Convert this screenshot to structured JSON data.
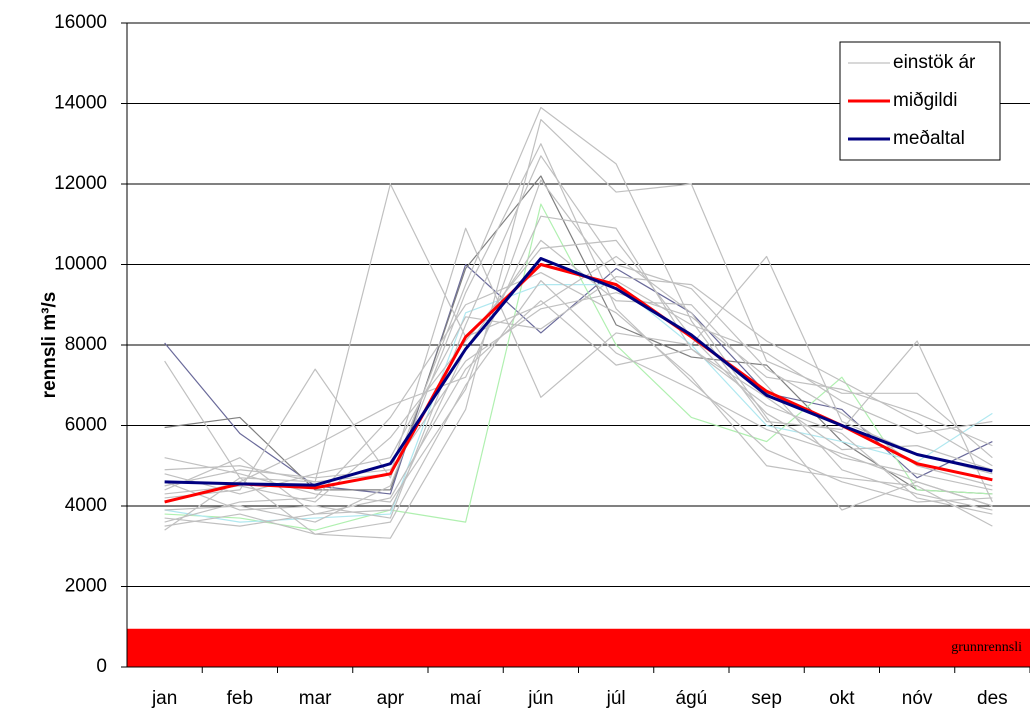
{
  "chart_data": {
    "type": "line",
    "y_label": "rennsli m³/s",
    "categories": [
      "jan",
      "feb",
      "mar",
      "apr",
      "maí",
      "jún",
      "júl",
      "ágú",
      "sep",
      "okt",
      "nóv",
      "des"
    ],
    "ylim": [
      0,
      16000
    ],
    "yticks": [
      0,
      2000,
      4000,
      6000,
      8000,
      10000,
      12000,
      14000,
      16000
    ],
    "grid": true,
    "baseflow": {
      "label": "grunnrennsli",
      "value": 950,
      "color": "#ff0000"
    },
    "years": {
      "name": "einstök ár",
      "color": "#c0c0c0",
      "lines": [
        {
          "color": "#6a6a9a",
          "values": [
            8050,
            5800,
            4500,
            4300,
            10000,
            8300,
            9900,
            8800,
            6800,
            6400,
            4700,
            5600
          ]
        },
        {
          "color": "#808080",
          "values": [
            5950,
            6200,
            4400,
            4400,
            9900,
            12200,
            8500,
            7700,
            7500,
            5600,
            4400,
            4300
          ]
        },
        {
          "color": "#b0f0b0",
          "values": [
            3800,
            3700,
            3400,
            3900,
            3600,
            11500,
            8000,
            6200,
            5600,
            7200,
            4400,
            4300
          ]
        },
        {
          "color": "#b0e8f0",
          "values": [
            3900,
            3600,
            3700,
            3800,
            8800,
            9500,
            9500,
            8000,
            6000,
            5600,
            5100,
            6300
          ]
        },
        {
          "color": "#c0c0c0",
          "values": [
            7600,
            4700,
            4600,
            12000,
            8200,
            9000,
            10200,
            8800,
            6200,
            3900,
            4600,
            4000
          ]
        },
        {
          "color": "#c0c0c0",
          "values": [
            4200,
            4400,
            7400,
            4700,
            9500,
            13900,
            12500,
            8600,
            6100,
            5900,
            8100,
            4100
          ]
        },
        {
          "color": "#c0c0c0",
          "values": [
            3400,
            4700,
            3300,
            3200,
            6400,
            13600,
            11800,
            12000,
            7600,
            6800,
            6800,
            5200
          ]
        },
        {
          "color": "#c0c0c0",
          "values": [
            4900,
            5000,
            4600,
            4800,
            10900,
            6700,
            8300,
            8000,
            10200,
            6100,
            5300,
            4800
          ]
        },
        {
          "color": "#c0c0c0",
          "values": [
            4400,
            5200,
            3800,
            3900,
            7900,
            10600,
            9100,
            9000,
            7000,
            4900,
            4300,
            3900
          ]
        },
        {
          "color": "#c0c0c0",
          "values": [
            4600,
            3900,
            4000,
            3700,
            8500,
            12700,
            10000,
            9400,
            7400,
            6300,
            5000,
            4500
          ]
        },
        {
          "color": "#c0c0c0",
          "values": [
            3600,
            4100,
            4200,
            6200,
            9000,
            9800,
            8800,
            7200,
            5000,
            4700,
            4500,
            3500
          ]
        },
        {
          "color": "#c0c0c0",
          "values": [
            4100,
            4600,
            5500,
            6500,
            7200,
            11200,
            10900,
            7900,
            6700,
            5400,
            5500,
            4900
          ]
        },
        {
          "color": "#c0c0c0",
          "values": [
            4800,
            4300,
            4800,
            5200,
            8700,
            8400,
            9700,
            9500,
            8100,
            7100,
            6100,
            5000
          ]
        },
        {
          "color": "#c0c0c0",
          "values": [
            3700,
            3500,
            3800,
            4200,
            7400,
            9100,
            7500,
            7900,
            6500,
            5800,
            4200,
            3800
          ]
        },
        {
          "color": "#c0c0c0",
          "values": [
            5200,
            4800,
            4300,
            4100,
            6900,
            12100,
            9600,
            8500,
            7800,
            6600,
            5800,
            6100
          ]
        },
        {
          "color": "#c0c0c0",
          "values": [
            4300,
            4500,
            4100,
            5700,
            8100,
            10400,
            10600,
            8200,
            6300,
            5200,
            4800,
            4400
          ]
        },
        {
          "color": "#c0c0c0",
          "values": [
            3900,
            4000,
            3600,
            4500,
            9300,
            13000,
            8900,
            7100,
            5400,
            4600,
            4100,
            4200
          ]
        },
        {
          "color": "#c0c0c0",
          "values": [
            4500,
            4900,
            4700,
            4900,
            7600,
            8900,
            9300,
            8700,
            7200,
            6900,
            6300,
            5500
          ]
        },
        {
          "color": "#c0c0c0",
          "values": [
            3500,
            3800,
            3300,
            3600,
            7000,
            9600,
            7800,
            6900,
            5900,
            5300,
            4600,
            4000
          ]
        }
      ]
    },
    "series": [
      {
        "name": "miðgildi",
        "color": "#ff0000",
        "values": [
          4100,
          4550,
          4450,
          4800,
          8200,
          10000,
          9500,
          8200,
          6850,
          6000,
          5050,
          4650
        ]
      },
      {
        "name": "meðaltal",
        "color": "#000080",
        "values": [
          4600,
          4550,
          4520,
          5050,
          7900,
          10150,
          9400,
          8250,
          6750,
          6000,
          5280,
          4870
        ]
      }
    ]
  }
}
